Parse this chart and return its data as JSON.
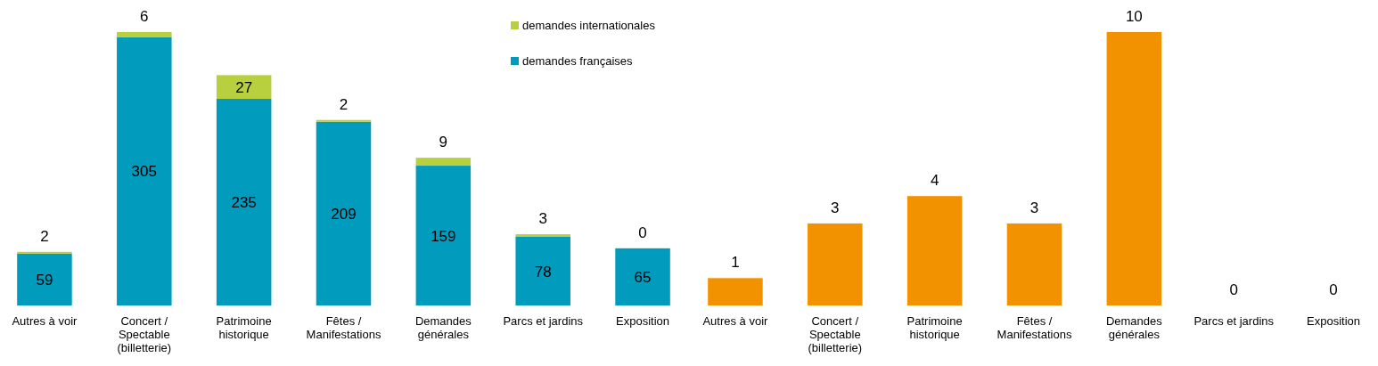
{
  "chart_data": [
    {
      "type": "bar",
      "stacked": true,
      "data_labels": true,
      "legend": "top right",
      "categories": [
        "Autres à voir",
        "Concert / Spectable (billetterie)",
        "Patrimoine historique",
        "Fêtes / Manifestations",
        "Demandes générales",
        "Parcs et jardins",
        "Exposition"
      ],
      "series": [
        {
          "name": "demandes françaises",
          "color": "#009bbd",
          "values": [
            59,
            305,
            235,
            209,
            159,
            78,
            65
          ]
        },
        {
          "name": "demandes internationales",
          "color": "#b8cf3e",
          "values": [
            2,
            6,
            27,
            2,
            9,
            3,
            0
          ]
        }
      ]
    },
    {
      "type": "bar",
      "data_labels": true,
      "categories": [
        "Autres à voir",
        "Concert / Spectable (billetterie)",
        "Patrimoine historique",
        "Fêtes / Manifestations",
        "Demandes générales",
        "Parcs et jardins",
        "Exposition"
      ],
      "series": [
        {
          "color": "#f39200",
          "values": [
            1,
            3,
            4,
            3,
            10,
            0,
            0
          ]
        }
      ]
    }
  ]
}
